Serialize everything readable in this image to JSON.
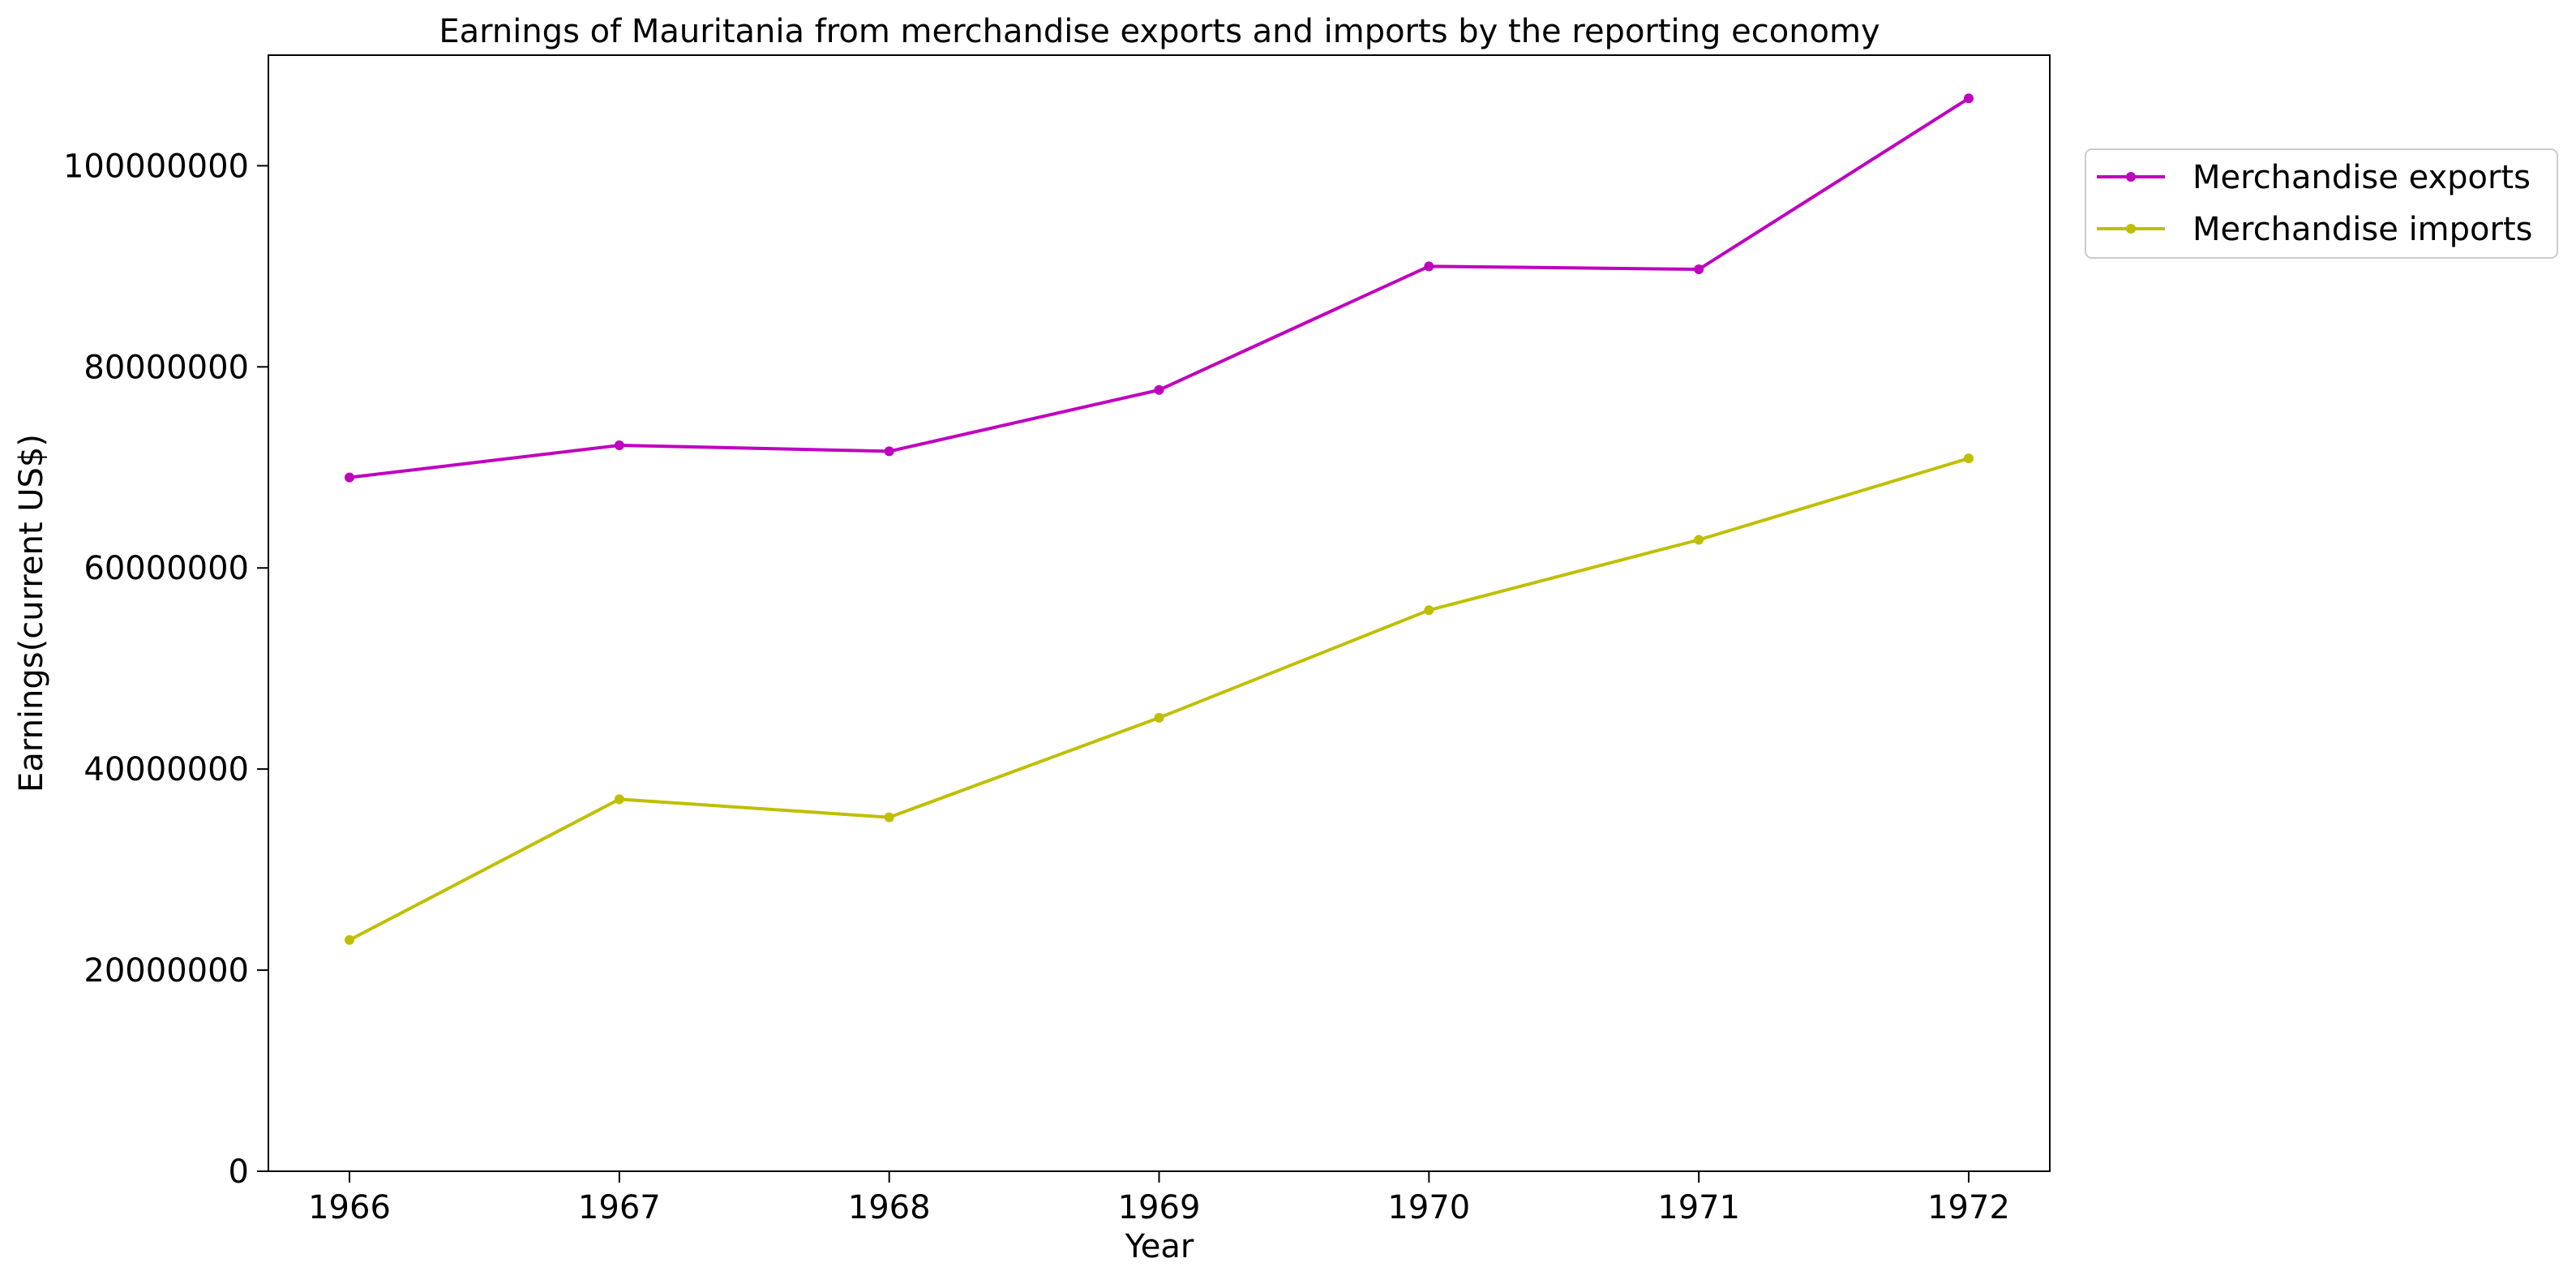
{
  "chart_data": {
    "type": "line",
    "title": "Earnings of Mauritania from merchandise exports and imports by the reporting economy",
    "xlabel": "Year",
    "ylabel": "Earnings(current US$)",
    "categories": [
      "1966",
      "1967",
      "1968",
      "1969",
      "1970",
      "1971",
      "1972"
    ],
    "y_ticks": [
      "0",
      "20000000",
      "40000000",
      "60000000",
      "80000000",
      "100000000"
    ],
    "ylim": [
      0,
      111000000
    ],
    "grid": false,
    "legend_position": "outside-top-right",
    "series": [
      {
        "name": "Merchandise exports",
        "color": "#bf00bf",
        "marker": "circle",
        "values": [
          69000000,
          72200000,
          71600000,
          77700000,
          90000000,
          89700000,
          106700000
        ]
      },
      {
        "name": "Merchandise imports",
        "color": "#bfbf00",
        "marker": "circle",
        "values": [
          23000000,
          37000000,
          35200000,
          45100000,
          55800000,
          62800000,
          70900000
        ]
      }
    ]
  }
}
